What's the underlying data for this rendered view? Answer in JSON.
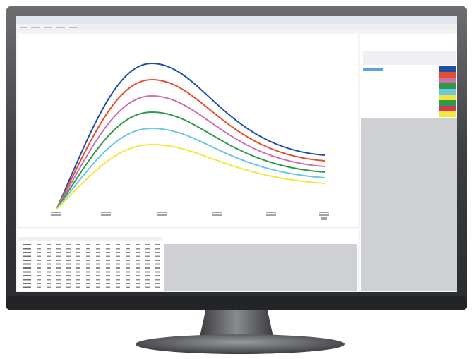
{
  "screen": {
    "chart": {
      "curves": [
        {
          "color": "#1f4fa8"
        },
        {
          "color": "#e0502e"
        },
        {
          "color": "#cf6fae"
        },
        {
          "color": "#2e9a46"
        },
        {
          "color": "#6cc6e6"
        },
        {
          "color": "#f2e83a"
        }
      ]
    }
  }
}
